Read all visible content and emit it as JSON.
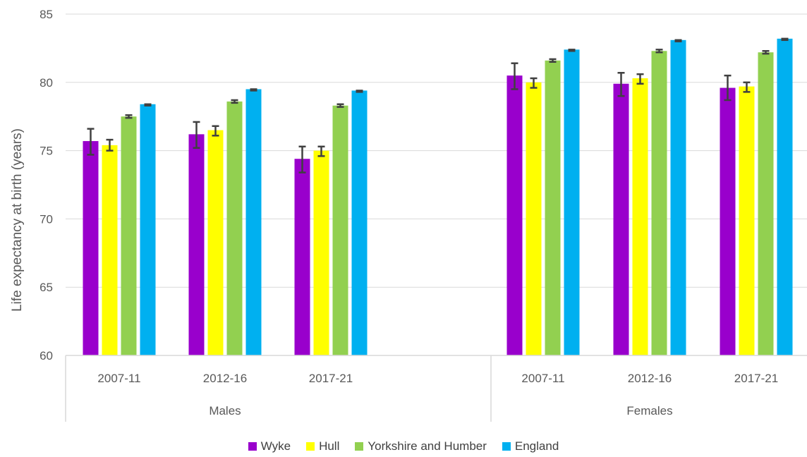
{
  "chart_data": {
    "type": "bar",
    "ylabel": "Life expectancy at birth (years)",
    "ylim": [
      60,
      85
    ],
    "yticks": [
      "60",
      "65",
      "70",
      "75",
      "80",
      "85"
    ],
    "grid": true,
    "legend_position": "bottom",
    "groups": [
      {
        "label": "Males",
        "categories": [
          "2007-11",
          "2012-16",
          "2017-21"
        ]
      },
      {
        "label": "Females",
        "categories": [
          "2007-11",
          "2012-16",
          "2017-21"
        ]
      }
    ],
    "series": [
      {
        "name": "Wyke",
        "color": "#9900cc",
        "values": [
          75.7,
          76.2,
          74.4,
          80.5,
          79.9,
          79.6
        ],
        "ci_low": [
          74.7,
          75.2,
          73.4,
          79.5,
          79.0,
          78.7
        ],
        "ci_high": [
          76.6,
          77.1,
          75.3,
          81.4,
          80.7,
          80.5
        ]
      },
      {
        "name": "Hull",
        "color": "#ffff00",
        "values": [
          75.4,
          76.5,
          75.0,
          80.0,
          80.3,
          79.7
        ],
        "ci_low": [
          75.0,
          76.1,
          74.6,
          79.6,
          79.9,
          79.3
        ],
        "ci_high": [
          75.8,
          76.8,
          75.3,
          80.3,
          80.6,
          80.0
        ]
      },
      {
        "name": "Yorkshire and Humber",
        "color": "#92d050",
        "values": [
          77.5,
          78.6,
          78.3,
          81.6,
          82.3,
          82.2
        ],
        "ci_low": [
          77.4,
          78.5,
          78.2,
          81.5,
          82.2,
          82.1
        ],
        "ci_high": [
          77.6,
          78.7,
          78.4,
          81.7,
          82.4,
          82.3
        ]
      },
      {
        "name": "England",
        "color": "#00b0f0",
        "values": [
          78.4,
          79.5,
          79.4,
          82.4,
          83.1,
          83.2
        ],
        "ci_low": [
          78.3,
          79.4,
          79.3,
          82.3,
          83.0,
          83.1
        ],
        "ci_high": [
          78.4,
          79.5,
          79.4,
          82.4,
          83.1,
          83.2
        ]
      }
    ]
  }
}
